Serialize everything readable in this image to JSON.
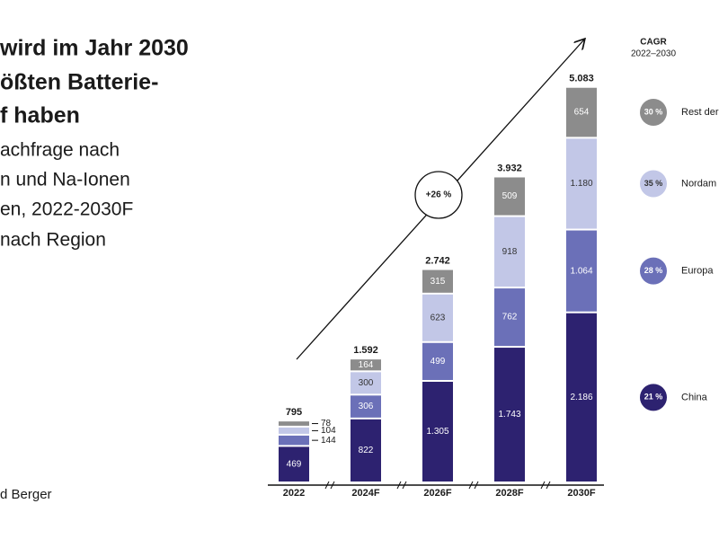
{
  "chart_data": {
    "type": "stacked_bar",
    "title_lines": [
      "wird im Jahr 2030",
      "ößten Batterie-",
      "f haben"
    ],
    "subtitle_lines": [
      "achfrage nach",
      "n und Na-Ionen",
      "en, 2022-2030F",
      "nach Region"
    ],
    "footer": "d Berger",
    "cagr_title": "CAGR",
    "cagr_period": "2022–2030",
    "arrow_label": "+26 %",
    "categories": [
      "2022",
      "2024F",
      "2026F",
      "2028F",
      "2030F"
    ],
    "series": [
      {
        "name": "China",
        "color": "#2d2270",
        "text_color": "#ffffff",
        "values": [
          469,
          822,
          1305,
          1743,
          2186
        ],
        "value_labels": [
          "469",
          "822",
          "1.305",
          "1.743",
          "2.186"
        ],
        "cagr": 21,
        "cagr_label": "21 %"
      },
      {
        "name": "Europa",
        "color": "#6b70b8",
        "text_color": "#ffffff",
        "values": [
          144,
          306,
          499,
          762,
          1064
        ],
        "value_labels": [
          "144",
          "306",
          "499",
          "762",
          "1.064"
        ],
        "cagr": 28,
        "cagr_label": "28 %"
      },
      {
        "name": "Nordam",
        "color": "#c2c7e7",
        "text_color": "#333333",
        "values": [
          104,
          300,
          623,
          918,
          1180
        ],
        "value_labels": [
          "104",
          "300",
          "623",
          "918",
          "1.180"
        ],
        "cagr": 35,
        "cagr_label": "35 %"
      },
      {
        "name": "Rest der",
        "color": "#8c8c8c",
        "text_color": "#ffffff",
        "values": [
          78,
          164,
          315,
          509,
          654
        ],
        "value_labels": [
          "78",
          "164",
          "315",
          "509",
          "654"
        ],
        "cagr": 30,
        "cagr_label": "30 %"
      }
    ],
    "totals": {
      "values": [
        795,
        1592,
        2742,
        3932,
        5083
      ],
      "value_labels": [
        "795",
        "1.592",
        "2.742",
        "3.932",
        "5.083"
      ]
    }
  }
}
